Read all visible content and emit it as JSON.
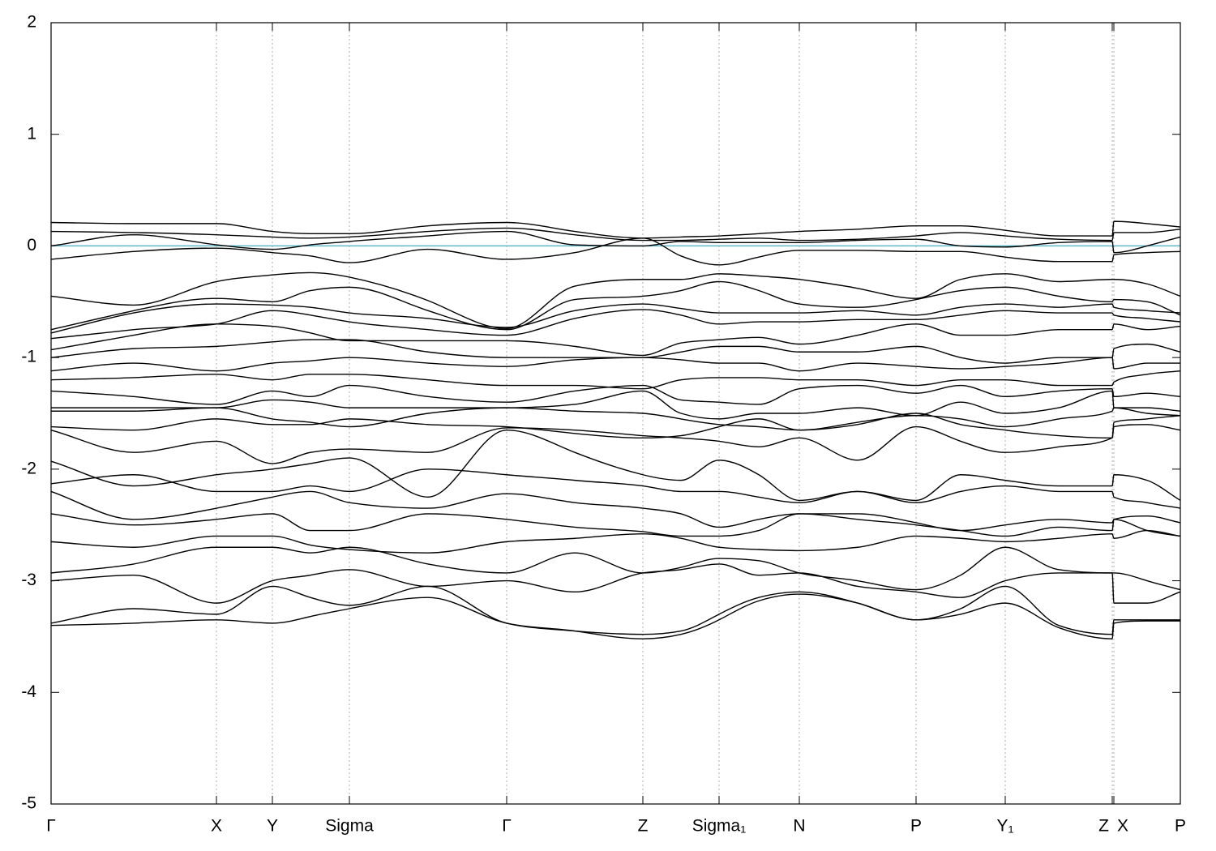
{
  "chart_data": {
    "type": "line",
    "line_color": "#000000",
    "fermi_level": 0,
    "fermi_color": "#5fb8c8",
    "grid": true,
    "xlim": [
      0,
      13.93
    ],
    "xticks": [
      {
        "value": 0,
        "label": "Γ"
      },
      {
        "value": 2.04,
        "label": "X"
      },
      {
        "value": 2.73,
        "label": "Y"
      },
      {
        "value": 3.68,
        "label": "Sigma"
      },
      {
        "value": 5.62,
        "label": "Γ"
      },
      {
        "value": 7.3,
        "label": "Z"
      },
      {
        "value": 8.24,
        "label": "Sigma₁"
      },
      {
        "value": 9.23,
        "label": "N"
      },
      {
        "value": 10.67,
        "label": "P"
      },
      {
        "value": 11.77,
        "label": "Y₁"
      },
      {
        "value": 13.09,
        "label": "Z"
      },
      {
        "value": 13.11,
        "label": "X"
      },
      {
        "value": 13.93,
        "label": "P"
      }
    ],
    "ylim": [
      -5,
      2
    ],
    "yticks": [
      -5,
      -4,
      -3,
      -2,
      -1,
      0,
      1,
      2
    ],
    "x": [
      0,
      1.02,
      2.04,
      2.73,
      3.2,
      3.68,
      4.65,
      5.62,
      6.46,
      7.3,
      7.77,
      8.24,
      8.73,
      9.23,
      9.95,
      10.67,
      11.22,
      11.77,
      12.43,
      13.09,
      13.11,
      13.52,
      13.93
    ],
    "series": [
      {
        "values": [
          0.21,
          0.2,
          0.2,
          0.13,
          0.11,
          0.11,
          0.18,
          0.21,
          0.13,
          0.07,
          0.08,
          0.09,
          0.11,
          0.13,
          0.15,
          0.18,
          0.18,
          0.14,
          0.09,
          0.09,
          0.22,
          0.2,
          0.17
        ]
      },
      {
        "values": [
          0.13,
          0.12,
          0.1,
          0.08,
          0.07,
          0.08,
          0.13,
          0.16,
          0.1,
          0.05,
          0.05,
          0.06,
          0.07,
          0.05,
          0.06,
          0.09,
          0.12,
          0.09,
          0.06,
          0.05,
          0.12,
          0.12,
          0.15
        ]
      },
      {
        "values": [
          0.0,
          0.1,
          0.01,
          -0.03,
          0.01,
          0.04,
          0.09,
          0.13,
          0.01,
          0.0,
          0.04,
          0.03,
          0.03,
          0.03,
          0.05,
          0.06,
          0.0,
          -0.01,
          0.03,
          0.04,
          -0.06,
          0.0,
          0.08
        ]
      },
      {
        "values": [
          -0.12,
          -0.05,
          -0.02,
          -0.06,
          -0.09,
          -0.15,
          -0.03,
          -0.12,
          -0.06,
          0.07,
          -0.09,
          -0.17,
          -0.1,
          -0.04,
          -0.04,
          -0.05,
          -0.05,
          -0.1,
          -0.14,
          -0.14,
          -0.08,
          -0.06,
          -0.05
        ]
      },
      {
        "values": [
          -0.45,
          -0.53,
          -0.32,
          -0.26,
          -0.24,
          -0.28,
          -0.49,
          -0.74,
          -0.36,
          -0.3,
          -0.3,
          -0.25,
          -0.27,
          -0.3,
          -0.38,
          -0.47,
          -0.3,
          -0.25,
          -0.32,
          -0.3,
          -0.3,
          -0.34,
          -0.45
        ]
      },
      {
        "values": [
          -0.75,
          -0.58,
          -0.47,
          -0.5,
          -0.4,
          -0.37,
          -0.58,
          -0.75,
          -0.48,
          -0.45,
          -0.4,
          -0.32,
          -0.4,
          -0.52,
          -0.55,
          -0.48,
          -0.4,
          -0.37,
          -0.45,
          -0.5,
          -0.48,
          -0.5,
          -0.62
        ]
      },
      {
        "values": [
          -0.78,
          -0.6,
          -0.52,
          -0.53,
          -0.55,
          -0.6,
          -0.65,
          -0.73,
          -0.58,
          -0.52,
          -0.56,
          -0.6,
          -0.6,
          -0.6,
          -0.58,
          -0.62,
          -0.55,
          -0.52,
          -0.55,
          -0.52,
          -0.55,
          -0.58,
          -0.6
        ]
      },
      {
        "values": [
          -0.83,
          -0.75,
          -0.7,
          -0.58,
          -0.62,
          -0.68,
          -0.75,
          -0.8,
          -0.65,
          -0.57,
          -0.62,
          -0.7,
          -0.68,
          -0.68,
          -0.66,
          -0.66,
          -0.62,
          -0.58,
          -0.6,
          -0.6,
          -0.62,
          -0.65,
          -0.68
        ]
      },
      {
        "values": [
          -0.93,
          -0.8,
          -0.7,
          -0.72,
          -0.78,
          -0.85,
          -0.85,
          -0.85,
          -0.9,
          -0.98,
          -0.87,
          -0.84,
          -0.82,
          -0.88,
          -0.8,
          -0.7,
          -0.8,
          -0.8,
          -0.75,
          -0.75,
          -0.7,
          -0.75,
          -0.72
        ]
      },
      {
        "values": [
          -1.0,
          -0.92,
          -0.9,
          -0.86,
          -0.84,
          -0.84,
          -0.95,
          -1.0,
          -1.0,
          -1.0,
          -0.95,
          -0.9,
          -0.9,
          -0.95,
          -0.95,
          -0.9,
          -1.0,
          -1.05,
          -1.0,
          -1.0,
          -0.92,
          -0.88,
          -0.95
        ]
      },
      {
        "values": [
          -1.12,
          -1.05,
          -1.12,
          -1.05,
          -1.03,
          -1.0,
          -1.05,
          -1.08,
          -1.02,
          -1.0,
          -1.02,
          -1.05,
          -1.05,
          -1.12,
          -1.05,
          -1.08,
          -1.1,
          -1.08,
          -1.05,
          -1.0,
          -1.1,
          -1.05,
          -1.05
        ]
      },
      {
        "values": [
          -1.2,
          -1.18,
          -1.15,
          -1.2,
          -1.15,
          -1.15,
          -1.2,
          -1.25,
          -1.25,
          -1.28,
          -1.2,
          -1.18,
          -1.18,
          -1.2,
          -1.2,
          -1.25,
          -1.2,
          -1.2,
          -1.25,
          -1.25,
          -1.22,
          -1.15,
          -1.12
        ]
      },
      {
        "values": [
          -1.3,
          -1.35,
          -1.42,
          -1.3,
          -1.35,
          -1.25,
          -1.35,
          -1.4,
          -1.3,
          -1.25,
          -1.38,
          -1.4,
          -1.42,
          -1.28,
          -1.25,
          -1.32,
          -1.25,
          -1.35,
          -1.3,
          -1.28,
          -1.35,
          -1.32,
          -1.35
        ]
      },
      {
        "values": [
          -1.45,
          -1.45,
          -1.45,
          -1.38,
          -1.4,
          -1.45,
          -1.45,
          -1.45,
          -1.42,
          -1.3,
          -1.5,
          -1.55,
          -1.5,
          -1.5,
          -1.45,
          -1.52,
          -1.4,
          -1.5,
          -1.45,
          -1.3,
          -1.45,
          -1.45,
          -1.48
        ]
      },
      {
        "values": [
          -1.48,
          -1.48,
          -1.45,
          -1.55,
          -1.58,
          -1.62,
          -1.5,
          -1.45,
          -1.48,
          -1.5,
          -1.55,
          -1.6,
          -1.62,
          -1.65,
          -1.58,
          -1.52,
          -1.55,
          -1.62,
          -1.55,
          -1.48,
          -1.45,
          -1.5,
          -1.52
        ]
      },
      {
        "values": [
          -1.62,
          -1.65,
          -1.55,
          -1.6,
          -1.6,
          -1.55,
          -1.6,
          -1.62,
          -1.68,
          -1.72,
          -1.7,
          -1.62,
          -1.55,
          -1.65,
          -1.6,
          -1.5,
          -1.6,
          -1.65,
          -1.7,
          -1.72,
          -1.58,
          -1.55,
          -1.52
        ]
      },
      {
        "values": [
          -1.65,
          -1.85,
          -1.75,
          -1.95,
          -1.85,
          -1.82,
          -1.85,
          -1.63,
          -1.65,
          -1.7,
          -1.72,
          -1.75,
          -1.8,
          -1.72,
          -1.92,
          -1.62,
          -1.75,
          -1.85,
          -1.8,
          -1.72,
          -1.62,
          -1.6,
          -1.65
        ]
      },
      {
        "values": [
          -1.93,
          -2.15,
          -2.05,
          -2.0,
          -1.95,
          -1.9,
          -2.25,
          -1.65,
          -1.85,
          -2.05,
          -2.1,
          -1.92,
          -2.05,
          -2.28,
          -2.2,
          -2.28,
          -2.05,
          -2.1,
          -2.15,
          -2.15,
          -2.05,
          -2.1,
          -2.28
        ]
      },
      {
        "values": [
          -2.13,
          -2.05,
          -2.2,
          -2.2,
          -2.15,
          -2.2,
          -2.0,
          -2.05,
          -2.1,
          -2.15,
          -2.2,
          -2.2,
          -2.25,
          -2.3,
          -2.2,
          -2.3,
          -2.2,
          -2.15,
          -2.2,
          -2.2,
          -2.25,
          -2.3,
          -2.35
        ]
      },
      {
        "values": [
          -2.2,
          -2.45,
          -2.35,
          -2.25,
          -2.2,
          -2.3,
          -2.35,
          -2.22,
          -2.3,
          -2.35,
          -2.4,
          -2.52,
          -2.45,
          -2.4,
          -2.4,
          -2.48,
          -2.55,
          -2.5,
          -2.45,
          -2.48,
          -2.45,
          -2.42,
          -2.48
        ]
      },
      {
        "values": [
          -2.4,
          -2.5,
          -2.45,
          -2.4,
          -2.55,
          -2.55,
          -2.4,
          -2.45,
          -2.52,
          -2.56,
          -2.6,
          -2.6,
          -2.55,
          -2.4,
          -2.45,
          -2.5,
          -2.55,
          -2.6,
          -2.52,
          -2.55,
          -2.45,
          -2.55,
          -2.6
        ]
      },
      {
        "values": [
          -2.65,
          -2.7,
          -2.6,
          -2.6,
          -2.68,
          -2.72,
          -2.75,
          -2.65,
          -2.62,
          -2.58,
          -2.62,
          -2.7,
          -2.72,
          -2.73,
          -2.7,
          -2.6,
          -2.62,
          -2.65,
          -2.62,
          -2.58,
          -2.62,
          -2.55,
          -2.6
        ]
      },
      {
        "values": [
          -2.93,
          -2.85,
          -2.7,
          -2.7,
          -2.75,
          -2.7,
          -2.85,
          -2.93,
          -2.75,
          -2.93,
          -2.88,
          -2.8,
          -2.82,
          -2.93,
          -3.0,
          -3.08,
          -2.95,
          -2.7,
          -2.9,
          -2.93,
          -2.93,
          -3.0,
          -3.08
        ]
      },
      {
        "values": [
          -3.0,
          -2.95,
          -3.2,
          -3.0,
          -2.95,
          -2.9,
          -3.05,
          -3.0,
          -3.1,
          -2.93,
          -2.9,
          -2.85,
          -2.95,
          -2.93,
          -3.05,
          -3.1,
          -3.15,
          -3.0,
          -2.93,
          -2.93,
          -3.2,
          -3.2,
          -3.1
        ]
      },
      {
        "values": [
          -3.38,
          -3.25,
          -3.3,
          -3.05,
          -3.15,
          -3.22,
          -3.05,
          -3.38,
          -3.45,
          -3.48,
          -3.45,
          -3.3,
          -3.15,
          -3.1,
          -3.2,
          -3.35,
          -3.25,
          -3.05,
          -3.4,
          -3.48,
          -3.35,
          -3.35,
          -3.35
        ]
      },
      {
        "values": [
          -3.4,
          -3.38,
          -3.35,
          -3.38,
          -3.32,
          -3.25,
          -3.15,
          -3.38,
          -3.45,
          -3.52,
          -3.48,
          -3.35,
          -3.18,
          -3.12,
          -3.2,
          -3.35,
          -3.3,
          -3.2,
          -3.42,
          -3.52,
          -3.38,
          -3.36,
          -3.36
        ]
      }
    ]
  }
}
